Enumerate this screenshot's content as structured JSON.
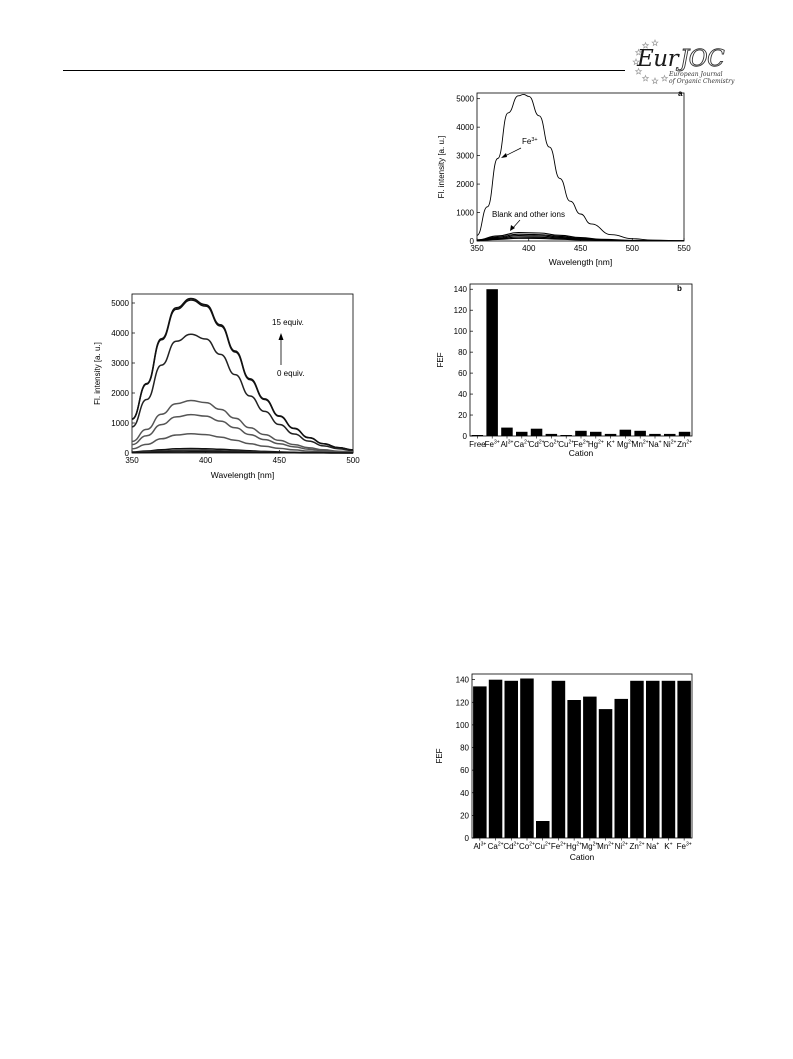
{
  "header": {
    "logo_eur": "Eur",
    "logo_joc": "JOC",
    "logo_sub1": "European Journal",
    "logo_sub2": "of Organic Chemistry"
  },
  "chart_data": [
    {
      "id": "spectra_a",
      "type": "line",
      "panel_label": "a",
      "xlabel": "Wavelength [nm]",
      "ylabel": "Fl. intensity [a. u.]",
      "xlim": [
        350,
        550
      ],
      "ylim": [
        0,
        5200
      ],
      "xticks": [
        350,
        400,
        450,
        500,
        550
      ],
      "yticks": [
        0,
        1000,
        2000,
        3000,
        4000,
        5000
      ],
      "grid": false,
      "legend": "none",
      "annotations": [
        "Fe3+",
        "Blank and other ions"
      ],
      "series": [
        {
          "x": [
            350,
            360,
            370,
            380,
            390,
            395,
            400,
            410,
            420,
            430,
            440,
            450,
            460,
            480,
            500,
            520,
            550
          ],
          "y": [
            200,
            1200,
            2900,
            4500,
            5100,
            5150,
            5080,
            4400,
            3300,
            2200,
            1400,
            950,
            600,
            220,
            80,
            30,
            10
          ]
        },
        {
          "x": [
            350,
            370,
            390,
            410,
            430,
            450,
            470,
            500,
            550
          ],
          "y": [
            40,
            180,
            300,
            280,
            200,
            120,
            60,
            20,
            5
          ]
        },
        {
          "x": [
            350,
            370,
            390,
            410,
            430,
            450,
            470,
            500,
            550
          ],
          "y": [
            30,
            140,
            240,
            220,
            160,
            90,
            45,
            15,
            5
          ]
        },
        {
          "x": [
            350,
            370,
            390,
            410,
            430,
            450,
            470,
            500,
            550
          ],
          "y": [
            25,
            110,
            190,
            175,
            125,
            70,
            35,
            12,
            4
          ]
        },
        {
          "x": [
            350,
            370,
            390,
            410,
            430,
            450,
            470,
            500,
            550
          ],
          "y": [
            20,
            80,
            140,
            130,
            95,
            55,
            25,
            10,
            3
          ]
        },
        {
          "x": [
            350,
            370,
            390,
            410,
            430,
            450,
            470,
            500,
            550
          ],
          "y": [
            15,
            55,
            95,
            90,
            65,
            38,
            18,
            7,
            2
          ]
        }
      ]
    },
    {
      "id": "titration",
      "type": "line",
      "xlabel": "Wavelength [nm]",
      "ylabel": "Fl. intensity [a. u.]",
      "xlim": [
        350,
        500
      ],
      "ylim": [
        0,
        5300
      ],
      "xticks": [
        350,
        400,
        450,
        500
      ],
      "yticks": [
        0,
        1000,
        2000,
        3000,
        4000,
        5000
      ],
      "grid": false,
      "legend": "none",
      "annotations": [
        "15 equiv.",
        "0 equiv."
      ],
      "peak_x": [
        350,
        360,
        370,
        380,
        390,
        400,
        410,
        420,
        430,
        440,
        450,
        460,
        470,
        480,
        490,
        500
      ],
      "peak_shape": [
        0.22,
        0.45,
        0.74,
        0.94,
        1.0,
        0.96,
        0.83,
        0.66,
        0.48,
        0.35,
        0.24,
        0.16,
        0.1,
        0.06,
        0.035,
        0.02
      ],
      "series": [
        {
          "peak": 5150,
          "color": "#111111"
        },
        {
          "peak": 5100,
          "color": "#111111"
        },
        {
          "peak": 3960,
          "color": "#222222"
        },
        {
          "peak": 1750,
          "color": "#555555"
        },
        {
          "peak": 1280,
          "color": "#555555"
        },
        {
          "peak": 640,
          "color": "#555555"
        },
        {
          "peak": 150,
          "color": "#111111"
        },
        {
          "peak": 90,
          "color": "#333333"
        },
        {
          "peak": 40,
          "color": "#111111"
        }
      ]
    },
    {
      "id": "fef_b",
      "type": "bar",
      "panel_label": "b",
      "xlabel": "Cation",
      "ylabel": "FEF",
      "ylim": [
        0,
        145
      ],
      "yticks": [
        0,
        20,
        40,
        60,
        80,
        100,
        120,
        140
      ],
      "grid": false,
      "legend": "none",
      "categories": [
        {
          "base": "Free",
          "sup": ""
        },
        {
          "base": "Fe",
          "sup": "3+"
        },
        {
          "base": "Al",
          "sup": "3+"
        },
        {
          "base": "Ca",
          "sup": "2+"
        },
        {
          "base": "Cd",
          "sup": "2+"
        },
        {
          "base": "Co",
          "sup": "2+"
        },
        {
          "base": "Cu",
          "sup": "2+"
        },
        {
          "base": "Fe",
          "sup": "2+"
        },
        {
          "base": "Hg",
          "sup": "2+"
        },
        {
          "base": "K",
          "sup": "+"
        },
        {
          "base": "Mg",
          "sup": "2+"
        },
        {
          "base": "Mn",
          "sup": "2+"
        },
        {
          "base": "Na",
          "sup": "+"
        },
        {
          "base": "Ni",
          "sup": "2+"
        },
        {
          "base": "Zn",
          "sup": "2+"
        }
      ],
      "values": [
        1,
        140,
        8,
        4,
        7,
        2,
        1,
        5,
        4,
        2,
        6,
        5,
        2,
        2,
        4
      ]
    },
    {
      "id": "fef_competition",
      "type": "bar",
      "xlabel": "Cation",
      "ylabel": "FEF",
      "ylim": [
        0,
        145
      ],
      "yticks": [
        0,
        20,
        40,
        60,
        80,
        100,
        120,
        140
      ],
      "grid": false,
      "legend": "none",
      "categories": [
        {
          "base": "Al",
          "sup": "3+"
        },
        {
          "base": "Ca",
          "sup": "2+"
        },
        {
          "base": "Cd",
          "sup": "2+"
        },
        {
          "base": "Co",
          "sup": "2+"
        },
        {
          "base": "Cu",
          "sup": "2+"
        },
        {
          "base": "Fe",
          "sup": "2+"
        },
        {
          "base": "Hg",
          "sup": "2+"
        },
        {
          "base": "Mg",
          "sup": "2+"
        },
        {
          "base": "Mn",
          "sup": "2+"
        },
        {
          "base": "Ni",
          "sup": "2+"
        },
        {
          "base": "Zn",
          "sup": "2+"
        },
        {
          "base": "Na",
          "sup": "+"
        },
        {
          "base": "K",
          "sup": "+"
        },
        {
          "base": "Fe",
          "sup": "3+"
        }
      ],
      "values": [
        134,
        140,
        139,
        141,
        15,
        139,
        122,
        125,
        114,
        123,
        139,
        139,
        139,
        139
      ]
    }
  ]
}
